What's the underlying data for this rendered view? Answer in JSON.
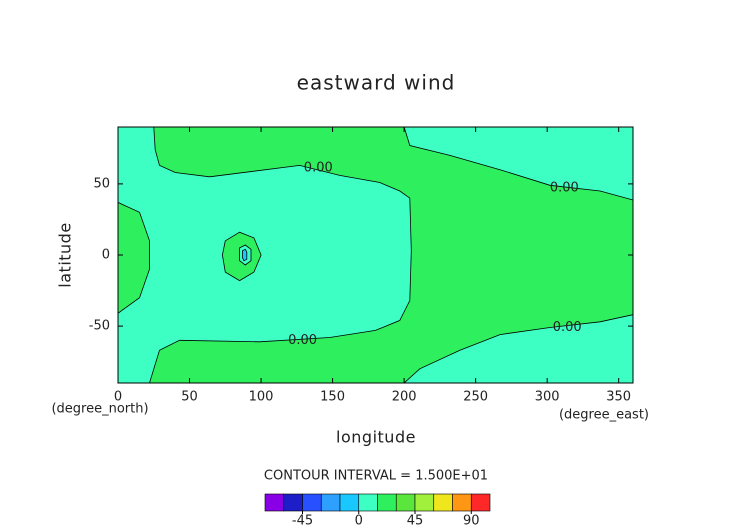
{
  "chart_data": {
    "type": "contour",
    "title": "eastward wind",
    "xlabel": "longitude",
    "ylabel": "latitude",
    "xunit": "(degree_north)",
    "x2unit": "(degree_east)",
    "xlim": [
      0,
      360
    ],
    "ylim": [
      -90,
      90
    ],
    "xticks": [
      0,
      50,
      100,
      150,
      200,
      250,
      300,
      350
    ],
    "yticks": [
      -50,
      0,
      50
    ],
    "background_color": "#3dffc4",
    "regions": [
      {
        "color": "#2ef05e",
        "points": [
          [
            25,
            90
          ],
          [
            200,
            90
          ],
          [
            204,
            77
          ],
          [
            232,
            70
          ],
          [
            267,
            60
          ],
          [
            302,
            49
          ],
          [
            337,
            45
          ],
          [
            360,
            38.7
          ],
          [
            360,
            -42
          ],
          [
            337,
            -47
          ],
          [
            302,
            -51
          ],
          [
            267,
            -56
          ],
          [
            239,
            -67
          ],
          [
            211,
            -80
          ],
          [
            200,
            -90
          ],
          [
            22,
            -90
          ],
          [
            29,
            -67
          ],
          [
            43,
            -60
          ],
          [
            99,
            -61
          ],
          [
            148,
            -58
          ],
          [
            180,
            -53
          ],
          [
            197,
            -46
          ],
          [
            204,
            -32
          ],
          [
            205,
            3
          ],
          [
            204,
            40
          ],
          [
            197,
            45
          ],
          [
            183,
            51
          ],
          [
            155,
            56
          ],
          [
            127,
            63
          ],
          [
            64,
            55
          ],
          [
            40,
            58
          ],
          [
            29,
            63
          ],
          [
            26,
            74
          ]
        ]
      },
      {
        "color": "#2ef05e",
        "points": [
          [
            0,
            37
          ],
          [
            15,
            30
          ],
          [
            22,
            10
          ],
          [
            22,
            -10
          ],
          [
            15,
            -30
          ],
          [
            0,
            -41
          ]
        ]
      },
      {
        "color": "#2ef05e",
        "points": [
          [
            75,
            10
          ],
          [
            85,
            16
          ],
          [
            95,
            12
          ],
          [
            100,
            0
          ],
          [
            95,
            -12
          ],
          [
            85,
            -18
          ],
          [
            75,
            -12
          ],
          [
            73,
            0
          ]
        ]
      },
      {
        "color": "#3dffc4",
        "points": [
          [
            85,
            5
          ],
          [
            89,
            7
          ],
          [
            93,
            4
          ],
          [
            93,
            -4
          ],
          [
            89,
            -7
          ],
          [
            85,
            -4
          ]
        ]
      },
      {
        "color": "#19c8ff",
        "points": [
          [
            87,
            3
          ],
          [
            89,
            4
          ],
          [
            90,
            2
          ],
          [
            90,
            -3
          ],
          [
            88,
            -4
          ],
          [
            87,
            -2
          ]
        ]
      }
    ],
    "contour_labels": [
      {
        "text": "0.00",
        "x": 140,
        "y": 61
      },
      {
        "text": "0.00",
        "x": 312,
        "y": 47
      },
      {
        "text": "0.00",
        "x": 314,
        "y": -51
      },
      {
        "text": "0.00",
        "x": 129,
        "y": -60
      }
    ],
    "contour_interval": "CONTOUR INTERVAL = 1.500E+01",
    "colorbar": {
      "levels": [
        -75,
        -60,
        -45,
        -30,
        -15,
        0,
        15,
        30,
        45,
        60,
        75,
        90,
        105
      ],
      "colors": [
        "#8a00e6",
        "#1e1ec8",
        "#2850ff",
        "#2ea0ff",
        "#19c8ff",
        "#3dffc4",
        "#2ef05e",
        "#5ae63c",
        "#a0f03c",
        "#f0e61e",
        "#ff9614",
        "#ff2828"
      ],
      "ticks": [
        -45,
        0,
        45,
        90
      ]
    }
  }
}
